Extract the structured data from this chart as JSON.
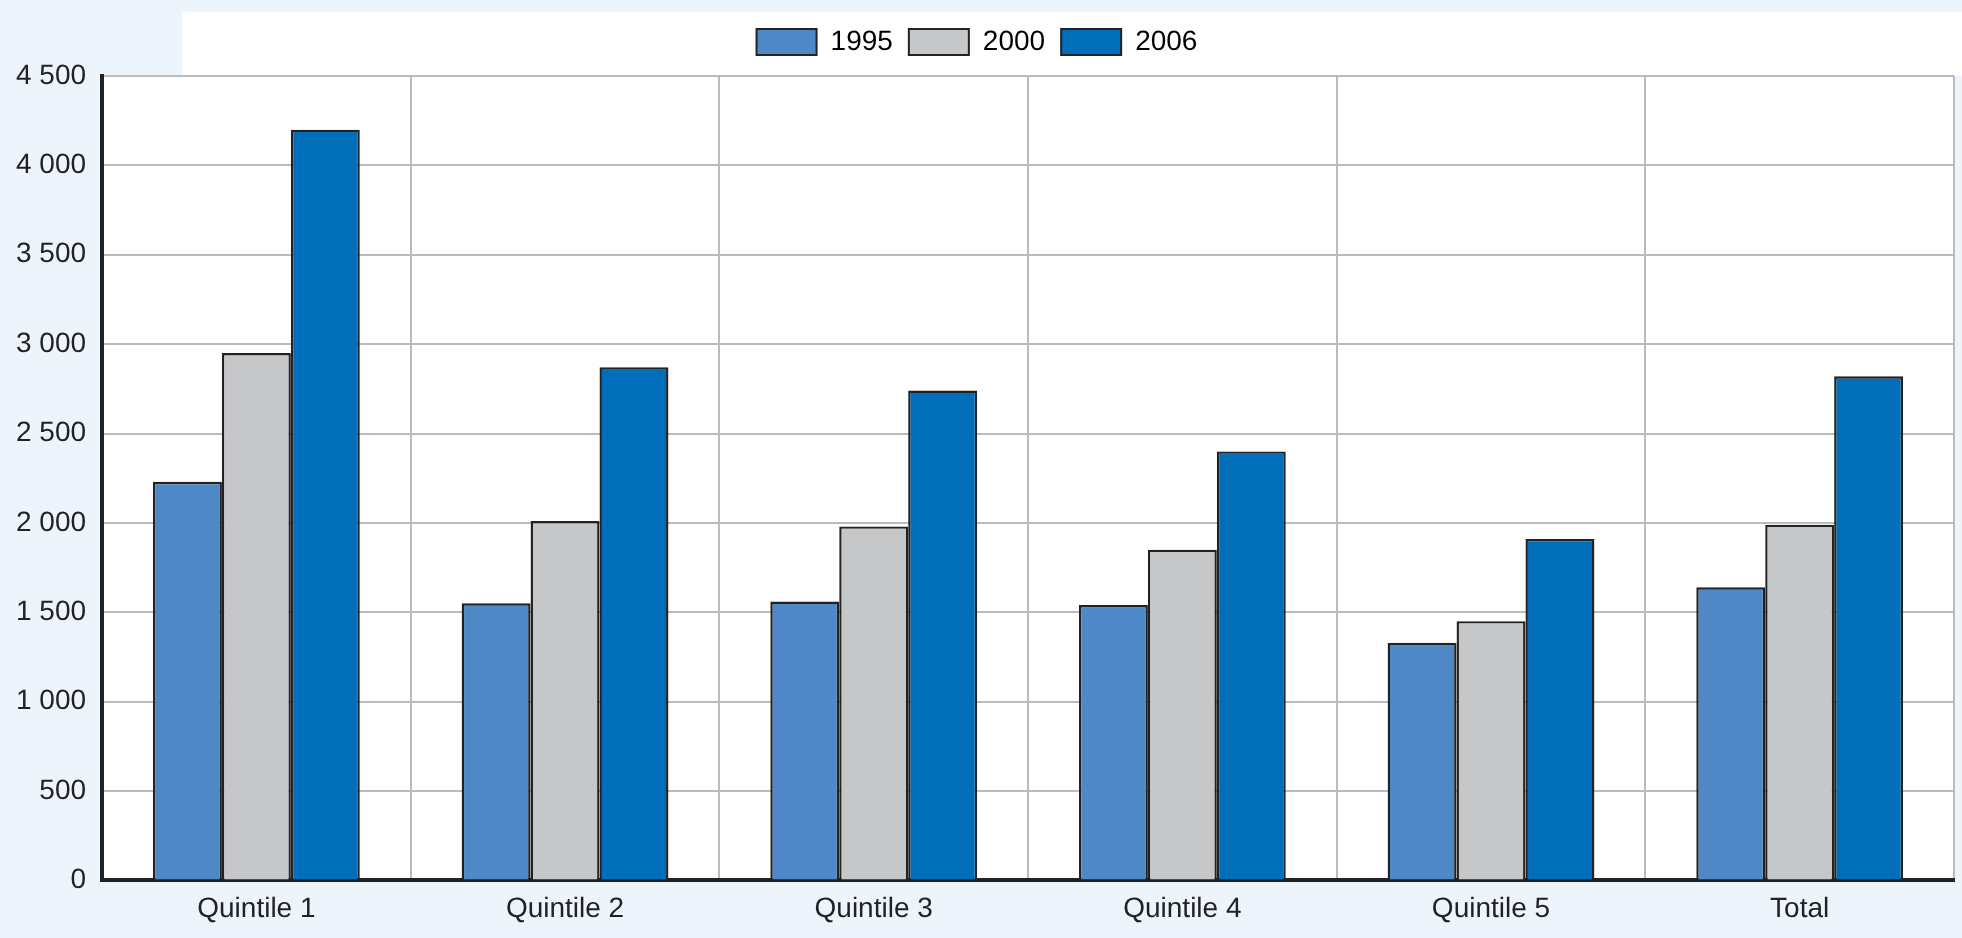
{
  "chart_data": {
    "type": "bar",
    "categories": [
      "Quintile 1",
      "Quintile 2",
      "Quintile 3",
      "Quintile 4",
      "Quintile 5",
      "Total"
    ],
    "series": [
      {
        "name": "1995",
        "color": "#4f88c6",
        "values": [
          2230,
          1550,
          1560,
          1540,
          1330,
          1640
        ]
      },
      {
        "name": "2000",
        "color": "#c6c7c9",
        "values": [
          2950,
          2010,
          1980,
          1850,
          1450,
          1990
        ]
      },
      {
        "name": "2006",
        "color": "#006eb8",
        "values": [
          4200,
          2870,
          2740,
          2400,
          1910,
          2820
        ]
      }
    ],
    "ylim": [
      0,
      4500
    ],
    "yticks": [
      0,
      500,
      1000,
      1500,
      2000,
      2500,
      3000,
      3500,
      4000,
      4500
    ],
    "grid": true,
    "legend": "top"
  }
}
